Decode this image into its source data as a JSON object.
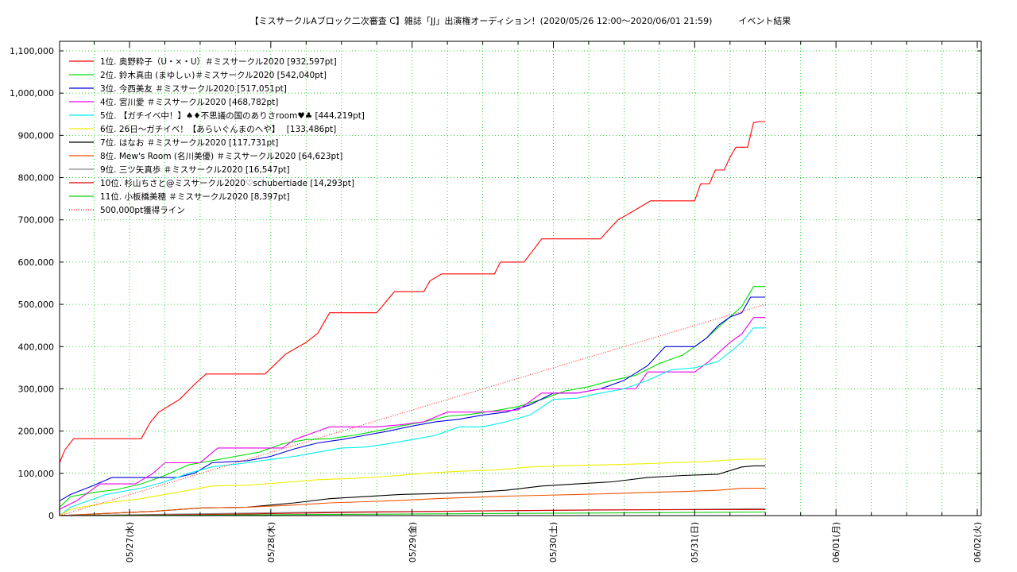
{
  "chart_data": {
    "type": "line",
    "title": "【ミスサークルAブロック二次審査 C】雑誌「JJ」出演権オーディション！(2020/05/26 12:00～2020/06/01 21:59)　　　イベント結果",
    "xlabel": "",
    "ylabel": "",
    "x_ticks": [
      "05/27(水)",
      "05/28(木)",
      "05/29(金)",
      "05/30(土)",
      "05/31(日)",
      "06/01(月)",
      "06/02(火)"
    ],
    "x_range_hours": [
      -16,
      83
    ],
    "ylim": [
      0,
      1150000
    ],
    "y_ticks": [
      "0",
      "100,000",
      "200,000",
      "300,000",
      "400,000",
      "500,000",
      "600,000",
      "700,000",
      "800,000",
      "900,000",
      "1,000,000",
      "1,100,000"
    ],
    "y_tick_values": [
      0,
      100000,
      200000,
      300000,
      400000,
      500000,
      600000,
      700000,
      800000,
      900000,
      1000000,
      1100000
    ],
    "grid": true,
    "legend_position": "top-left",
    "series": [
      {
        "name": "1位. 奥野粋子（U・×・U）＃ミスサークル2020 [932,597pt]",
        "color": "#ff0000",
        "points": [
          [
            -16,
            0
          ],
          [
            -14,
            80000
          ],
          [
            -12,
            125000
          ],
          [
            -11,
            155000
          ],
          [
            -9.5,
            182000
          ],
          [
            2,
            182000
          ],
          [
            3.5,
            220000
          ],
          [
            5,
            245000
          ],
          [
            8.5,
            275000
          ],
          [
            11,
            310000
          ],
          [
            13,
            335000
          ],
          [
            23,
            335000
          ],
          [
            24.5,
            355000
          ],
          [
            26.5,
            382000
          ],
          [
            30,
            410000
          ],
          [
            32,
            432000
          ],
          [
            34,
            480000
          ],
          [
            42,
            480000
          ],
          [
            43.5,
            505000
          ],
          [
            45,
            530000
          ],
          [
            50,
            530000
          ],
          [
            51,
            555000
          ],
          [
            53,
            572000
          ],
          [
            62,
            572000
          ],
          [
            63,
            600000
          ],
          [
            67,
            600000
          ],
          [
            68.5,
            627000
          ],
          [
            70,
            655000
          ],
          [
            80,
            655000
          ],
          [
            81.5,
            678000
          ],
          [
            83,
            700000
          ],
          [
            85.5,
            720000
          ],
          [
            88.5,
            745000
          ],
          [
            96,
            745000
          ],
          [
            97,
            785000
          ],
          [
            98.5,
            785000
          ],
          [
            99.5,
            818000
          ],
          [
            101,
            818000
          ],
          [
            102,
            848000
          ],
          [
            103,
            872000
          ],
          [
            105,
            872000
          ],
          [
            106,
            930000
          ],
          [
            107,
            932597
          ],
          [
            108,
            932597
          ]
        ]
      },
      {
        "name": "2位. 鈴木真由 (まゆしぃ)＃ミスサークル2020 [542,040pt]",
        "color": "#00dd00",
        "points": [
          [
            -16,
            0
          ],
          [
            -13,
            20000
          ],
          [
            -10,
            45000
          ],
          [
            -6,
            55000
          ],
          [
            -2,
            62000
          ],
          [
            2,
            75000
          ],
          [
            6,
            95000
          ],
          [
            10,
            120000
          ],
          [
            14,
            130000
          ],
          [
            18,
            140000
          ],
          [
            22,
            150000
          ],
          [
            26,
            170000
          ],
          [
            30,
            180000
          ],
          [
            34,
            182000
          ],
          [
            38,
            190000
          ],
          [
            42,
            200000
          ],
          [
            46,
            212000
          ],
          [
            50,
            222000
          ],
          [
            54,
            235000
          ],
          [
            58,
            240000
          ],
          [
            62,
            248000
          ],
          [
            66,
            258000
          ],
          [
            70,
            275000
          ],
          [
            74,
            295000
          ],
          [
            78,
            305000
          ],
          [
            82,
            320000
          ],
          [
            86,
            332000
          ],
          [
            90,
            360000
          ],
          [
            94,
            380000
          ],
          [
            98,
            420000
          ],
          [
            102,
            470000
          ],
          [
            104,
            495000
          ],
          [
            106,
            542040
          ],
          [
            108,
            542040
          ]
        ]
      },
      {
        "name": "3位. 今西美友 ＃ミスサークル2020 [517,051pt]",
        "color": "#0000dd",
        "points": [
          [
            -16,
            0
          ],
          [
            -14,
            35000
          ],
          [
            -10,
            50000
          ],
          [
            -6,
            72000
          ],
          [
            -3,
            90000
          ],
          [
            8,
            90000
          ],
          [
            11,
            100000
          ],
          [
            14,
            125000
          ],
          [
            20,
            130000
          ],
          [
            24,
            140000
          ],
          [
            28,
            158000
          ],
          [
            32,
            172000
          ],
          [
            36,
            180000
          ],
          [
            40,
            190000
          ],
          [
            44,
            200000
          ],
          [
            48,
            212000
          ],
          [
            52,
            222000
          ],
          [
            56,
            228000
          ],
          [
            60,
            238000
          ],
          [
            64,
            245000
          ],
          [
            68,
            262000
          ],
          [
            72,
            290000
          ],
          [
            76,
            290000
          ],
          [
            80,
            300000
          ],
          [
            84,
            320000
          ],
          [
            88,
            355000
          ],
          [
            91,
            400000
          ],
          [
            96,
            400000
          ],
          [
            98,
            420000
          ],
          [
            100,
            450000
          ],
          [
            102,
            470000
          ],
          [
            104,
            480000
          ],
          [
            105.5,
            517051
          ],
          [
            108,
            517051
          ]
        ]
      },
      {
        "name": "4位. 宮川愛 ＃ミスサークル2020 [468,782pt]",
        "color": "#ee00ee",
        "points": [
          [
            -16,
            0
          ],
          [
            -13,
            15000
          ],
          [
            -9,
            35000
          ],
          [
            -5,
            75000
          ],
          [
            1,
            75000
          ],
          [
            4,
            100000
          ],
          [
            6,
            125000
          ],
          [
            12,
            125000
          ],
          [
            15,
            160000
          ],
          [
            26,
            160000
          ],
          [
            28,
            180000
          ],
          [
            32,
            200000
          ],
          [
            34,
            210000
          ],
          [
            42,
            210000
          ],
          [
            46,
            215000
          ],
          [
            50,
            222000
          ],
          [
            54,
            245000
          ],
          [
            60,
            245000
          ],
          [
            66,
            250000
          ],
          [
            70,
            290000
          ],
          [
            76,
            290000
          ],
          [
            80,
            300000
          ],
          [
            86,
            300000
          ],
          [
            88,
            340000
          ],
          [
            96,
            340000
          ],
          [
            98,
            360000
          ],
          [
            100,
            385000
          ],
          [
            102,
            410000
          ],
          [
            104,
            430000
          ],
          [
            106,
            468782
          ],
          [
            108,
            468782
          ]
        ]
      },
      {
        "name": "5位. 【ガチイベ中！】♠♦不思議の国のありさroom♥♣ [444,219pt]",
        "color": "#00eeee",
        "points": [
          [
            -16,
            0
          ],
          [
            -10,
            20000
          ],
          [
            -4,
            50000
          ],
          [
            2,
            65000
          ],
          [
            6,
            80000
          ],
          [
            10,
            100000
          ],
          [
            14,
            115000
          ],
          [
            20,
            125000
          ],
          [
            24,
            133000
          ],
          [
            28,
            140000
          ],
          [
            32,
            150000
          ],
          [
            36,
            160000
          ],
          [
            40,
            162000
          ],
          [
            44,
            170000
          ],
          [
            48,
            180000
          ],
          [
            52,
            190000
          ],
          [
            56,
            210000
          ],
          [
            60,
            210000
          ],
          [
            64,
            222000
          ],
          [
            68,
            238000
          ],
          [
            72,
            275000
          ],
          [
            76,
            278000
          ],
          [
            80,
            290000
          ],
          [
            84,
            300000
          ],
          [
            88,
            320000
          ],
          [
            92,
            345000
          ],
          [
            96,
            350000
          ],
          [
            100,
            365000
          ],
          [
            104,
            410000
          ],
          [
            106,
            444219
          ],
          [
            108,
            444219
          ]
        ]
      },
      {
        "name": "6位. 26日～ガチイベ！【あらいぐんまのへや】　 [133,486pt]",
        "color": "#eeee00",
        "points": [
          [
            -16,
            0
          ],
          [
            -10,
            15000
          ],
          [
            -4,
            30000
          ],
          [
            2,
            40000
          ],
          [
            8,
            55000
          ],
          [
            14,
            70000
          ],
          [
            20,
            72000
          ],
          [
            26,
            78000
          ],
          [
            32,
            85000
          ],
          [
            38,
            88000
          ],
          [
            44,
            93000
          ],
          [
            50,
            100000
          ],
          [
            56,
            105000
          ],
          [
            62,
            108000
          ],
          [
            68,
            115000
          ],
          [
            74,
            118000
          ],
          [
            80,
            120000
          ],
          [
            86,
            122000
          ],
          [
            92,
            125000
          ],
          [
            98,
            128000
          ],
          [
            104,
            133486
          ],
          [
            108,
            133486
          ]
        ]
      },
      {
        "name": "7位. はなお ＃ミスサークル2020 [117,731pt]",
        "color": "#000000",
        "points": [
          [
            -16,
            0
          ],
          [
            -4,
            5000
          ],
          [
            4,
            10000
          ],
          [
            12,
            18000
          ],
          [
            20,
            20000
          ],
          [
            28,
            30000
          ],
          [
            34,
            40000
          ],
          [
            40,
            45000
          ],
          [
            46,
            50000
          ],
          [
            52,
            52000
          ],
          [
            58,
            55000
          ],
          [
            64,
            60000
          ],
          [
            70,
            70000
          ],
          [
            76,
            75000
          ],
          [
            82,
            80000
          ],
          [
            88,
            90000
          ],
          [
            94,
            95000
          ],
          [
            100,
            98000
          ],
          [
            104,
            115000
          ],
          [
            106,
            117731
          ],
          [
            108,
            117731
          ]
        ]
      },
      {
        "name": "8位. Mew's Room (名川美優) ＃ミスサークル2020 [64,623pt]",
        "color": "#ee5500",
        "points": [
          [
            -16,
            0
          ],
          [
            -4,
            5000
          ],
          [
            4,
            10000
          ],
          [
            12,
            18000
          ],
          [
            20,
            20000
          ],
          [
            28,
            25000
          ],
          [
            34,
            30000
          ],
          [
            40,
            33000
          ],
          [
            46,
            36000
          ],
          [
            52,
            40000
          ],
          [
            58,
            43000
          ],
          [
            64,
            46000
          ],
          [
            70,
            48000
          ],
          [
            76,
            50000
          ],
          [
            82,
            52000
          ],
          [
            88,
            55000
          ],
          [
            94,
            57000
          ],
          [
            100,
            60000
          ],
          [
            104,
            64623
          ],
          [
            108,
            64623
          ]
        ]
      },
      {
        "name": "9位. 三ツ矢真歩 ＃ミスサークル2020 [16,547pt]",
        "color": "#888888",
        "points": [
          [
            -16,
            0
          ],
          [
            0,
            2000
          ],
          [
            10,
            4000
          ],
          [
            20,
            6000
          ],
          [
            30,
            8000
          ],
          [
            40,
            9000
          ],
          [
            50,
            10000
          ],
          [
            60,
            11000
          ],
          [
            70,
            12000
          ],
          [
            80,
            13000
          ],
          [
            90,
            14000
          ],
          [
            100,
            15500
          ],
          [
            108,
            16547
          ]
        ]
      },
      {
        "name": "10位. 杉山ちさと@ミスサークル2020♡schubertiade [14,293pt]",
        "color": "#dd0000",
        "points": [
          [
            -16,
            0
          ],
          [
            0,
            1000
          ],
          [
            10,
            2000
          ],
          [
            20,
            4000
          ],
          [
            30,
            6000
          ],
          [
            40,
            8000
          ],
          [
            50,
            9500
          ],
          [
            60,
            11000
          ],
          [
            70,
            12500
          ],
          [
            80,
            13500
          ],
          [
            90,
            14000
          ],
          [
            108,
            14293
          ]
        ]
      },
      {
        "name": "11位. 小板橋美穂 ＃ミスサークル2020 [8,397pt]",
        "color": "#11cc11",
        "points": [
          [
            -16,
            0
          ],
          [
            10,
            1000
          ],
          [
            30,
            2500
          ],
          [
            50,
            4000
          ],
          [
            70,
            5500
          ],
          [
            90,
            7000
          ],
          [
            108,
            8397
          ]
        ]
      },
      {
        "name": "500,000pt獲得ライン",
        "color": "#ff0000",
        "dotted": true,
        "points": [
          [
            -16,
            0
          ],
          [
            108,
            500000
          ]
        ]
      }
    ]
  }
}
